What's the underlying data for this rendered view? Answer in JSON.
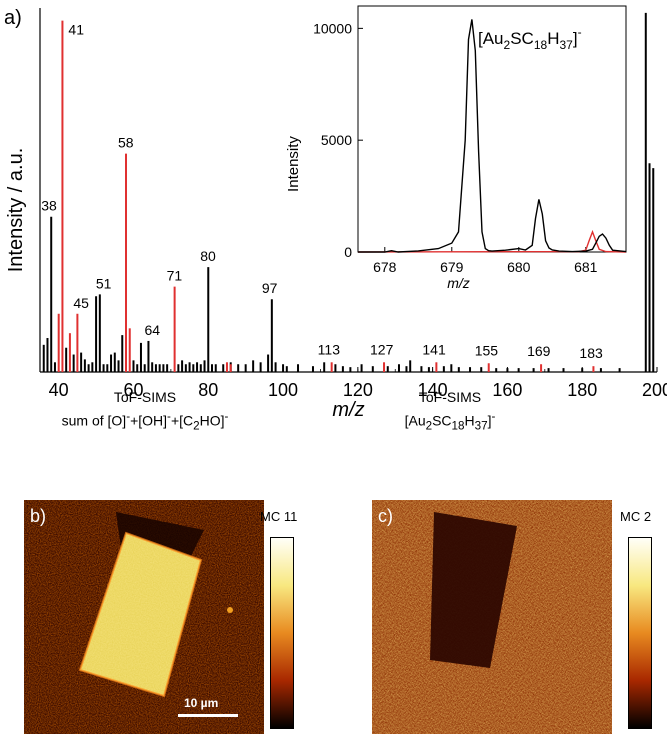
{
  "chart_data": [
    {
      "type": "bar",
      "panel_label": "a)",
      "xlabel": "m/z",
      "ylabel": "Intensity / a.u.",
      "xlim": [
        35,
        200
      ],
      "xticks": [
        "40",
        "60",
        "80",
        "100",
        "120",
        "140",
        "160",
        "180",
        "200"
      ],
      "series": [
        {
          "color": "#000000",
          "x": [
            36,
            37,
            38,
            39,
            42,
            44,
            46,
            47,
            48,
            49,
            50,
            51,
            52,
            53,
            54,
            55,
            56,
            57,
            60,
            61,
            62,
            63,
            64,
            65,
            66,
            67,
            68,
            69,
            72,
            73,
            74,
            75,
            76,
            77,
            78,
            79,
            80,
            81,
            82,
            84,
            86,
            88,
            90,
            92,
            94,
            96,
            97,
            98,
            100,
            101,
            104,
            108,
            111,
            114,
            116,
            118,
            121,
            124,
            128,
            131,
            133,
            134,
            137,
            139,
            143,
            145,
            147,
            150,
            153,
            157,
            160,
            163,
            167,
            171,
            175,
            180,
            185,
            190,
            197,
            198,
            199
          ],
          "values": [
            28,
            35,
            160,
            10,
            25,
            18,
            20,
            13,
            8,
            10,
            78,
            80,
            8,
            8,
            18,
            20,
            12,
            38,
            12,
            8,
            30,
            8,
            32,
            10,
            8,
            8,
            8,
            8,
            8,
            12,
            8,
            10,
            8,
            10,
            8,
            12,
            108,
            8,
            8,
            8,
            10,
            8,
            8,
            12,
            10,
            18,
            75,
            10,
            8,
            6,
            8,
            6,
            10,
            8,
            6,
            5,
            8,
            6,
            6,
            8,
            6,
            12,
            6,
            5,
            6,
            8,
            5,
            5,
            5,
            4,
            4,
            4,
            4,
            4,
            4,
            4,
            4,
            4,
            370,
            215,
            210
          ]
        },
        {
          "color": "#e03030",
          "x": [
            40,
            41,
            43,
            45,
            58,
            59,
            71,
            85,
            86,
            113,
            127,
            141,
            155,
            169,
            183
          ],
          "values": [
            60,
            362,
            40,
            60,
            225,
            45,
            88,
            10,
            8,
            10,
            10,
            10,
            9,
            8,
            6
          ]
        }
      ],
      "peak_labels": [
        {
          "x": 41,
          "y": 362,
          "text": "41"
        },
        {
          "x": 38,
          "y": 160,
          "text": "38"
        },
        {
          "x": 58,
          "y": 225,
          "text": "58"
        },
        {
          "x": 45,
          "y": 60,
          "text": "45"
        },
        {
          "x": 51,
          "y": 80,
          "text": "51"
        },
        {
          "x": 64,
          "y": 32,
          "text": "64"
        },
        {
          "x": 71,
          "y": 88,
          "text": "71"
        },
        {
          "x": 80,
          "y": 108,
          "text": "80"
        },
        {
          "x": 97,
          "y": 75,
          "text": "97"
        },
        {
          "x": 113,
          "y": 10,
          "text": "113"
        },
        {
          "x": 127,
          "y": 10,
          "text": "127"
        },
        {
          "x": 141,
          "y": 10,
          "text": "141"
        },
        {
          "x": 155,
          "y": 9,
          "text": "155"
        },
        {
          "x": 169,
          "y": 8,
          "text": "169"
        },
        {
          "x": 183,
          "y": 6,
          "text": "183"
        }
      ]
    },
    {
      "type": "line",
      "title_parts": [
        "[Au",
        "2",
        "SC",
        "18",
        "H",
        "37",
        "]",
        "-"
      ],
      "xlabel": "m/z",
      "ylabel": "Intensity",
      "xlim": [
        677.6,
        681.6
      ],
      "ylim": [
        0,
        11000
      ],
      "xticks": [
        "678",
        "679",
        "680",
        "681"
      ],
      "yticks": [
        "0",
        "5000",
        "10000"
      ],
      "series": [
        {
          "color": "#000000",
          "x": [
            677.6,
            678.0,
            678.1,
            678.2,
            678.5,
            678.8,
            679.0,
            679.1,
            679.2,
            679.25,
            679.3,
            679.35,
            679.4,
            679.45,
            679.5,
            679.55,
            679.6,
            679.8,
            680.0,
            680.1,
            680.2,
            680.25,
            680.3,
            680.35,
            680.4,
            680.45,
            680.5,
            680.6,
            680.8,
            681.0,
            681.1,
            681.15,
            681.2,
            681.25,
            681.3,
            681.35,
            681.4,
            681.6
          ],
          "values": [
            0,
            0,
            60,
            0,
            50,
            150,
            400,
            900,
            5000,
            9500,
            10400,
            9000,
            4500,
            900,
            150,
            60,
            40,
            80,
            150,
            90,
            300,
            1500,
            2350,
            1700,
            500,
            180,
            90,
            40,
            20,
            40,
            120,
            400,
            700,
            800,
            620,
            300,
            80,
            20
          ]
        },
        {
          "color": "#e03030",
          "x": [
            677.6,
            680.9,
            681.0,
            681.05,
            681.1,
            681.15,
            681.2,
            681.3,
            681.6
          ],
          "values": [
            0,
            20,
            80,
            500,
            900,
            500,
            120,
            20,
            0
          ]
        }
      ]
    }
  ],
  "panels": {
    "b": {
      "letter": "b)",
      "title_line1": "ToF-SIMS",
      "title_line2_parts": [
        "sum of [O]",
        "-",
        "+[OH]",
        "-",
        "+[C",
        "2",
        "HO]",
        "-"
      ],
      "colorbar_label": "MC 11",
      "scalebar_label": "10 µm"
    },
    "c": {
      "letter": "c)",
      "title_line1": "ToF-SIMS",
      "title_line2_parts": [
        "[Au",
        "2",
        "SC",
        "18",
        "H",
        "37",
        "]",
        "-"
      ],
      "colorbar_label": "MC 2"
    }
  },
  "colors": {
    "black_series": "#000000",
    "red_series": "#e03030",
    "image_dark": "#2a0500",
    "image_mid": "#8a2a00",
    "image_bright": "#f4e860"
  }
}
